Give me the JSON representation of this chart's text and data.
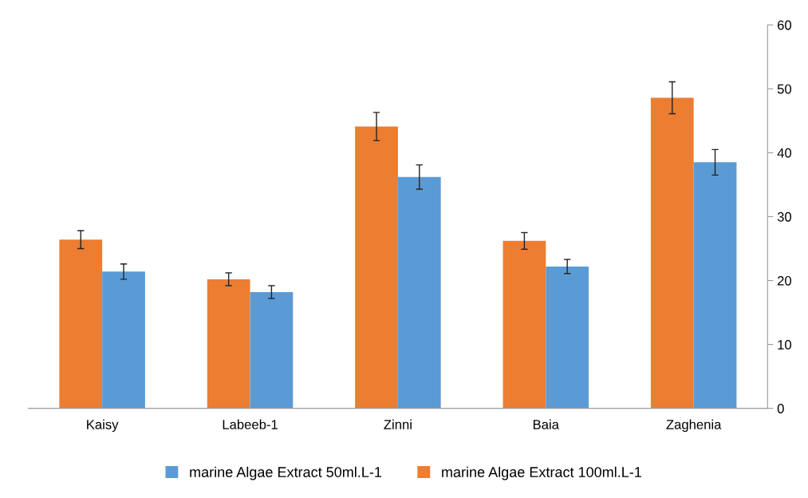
{
  "chart_data": {
    "type": "bar",
    "categories": [
      "Kaisy",
      "Labeeb-1",
      "Zinni",
      "Baia",
      "Zaghenia"
    ],
    "series": [
      {
        "name": "marine Algae Extract 100ml.L-1",
        "color": "#ed7d31",
        "values": [
          26.4,
          20.2,
          44.1,
          26.2,
          48.6
        ],
        "errors": [
          1.4,
          1.0,
          2.2,
          1.3,
          2.5
        ]
      },
      {
        "name": "marine Algae Extract 50ml.L-1",
        "color": "#5b9bd5",
        "values": [
          21.4,
          18.2,
          36.2,
          22.2,
          38.5
        ],
        "errors": [
          1.2,
          1.0,
          1.9,
          1.1,
          2.0
        ]
      }
    ],
    "ylim": [
      0,
      60
    ],
    "yticks": [
      0,
      10,
      20,
      30,
      40,
      50,
      60
    ],
    "grid": false,
    "legend": "bottom"
  }
}
